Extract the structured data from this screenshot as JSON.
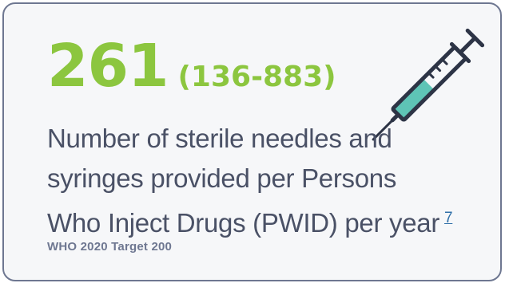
{
  "stat": {
    "value": "261",
    "range": "(136-883)"
  },
  "description": {
    "line1": "Number of sterile needles and",
    "line2": "syringes provided per Persons",
    "line3": "Who Inject Drugs (PWID) per year",
    "footnote": "7"
  },
  "target": "WHO 2020 Target 200",
  "colors": {
    "accent": "#8cc63f",
    "text": "#4a5166",
    "border": "#6e7791",
    "liquid": "#5ec4b6",
    "link": "#2f6fa8"
  },
  "icons": {
    "syringe": "syringe-icon"
  }
}
